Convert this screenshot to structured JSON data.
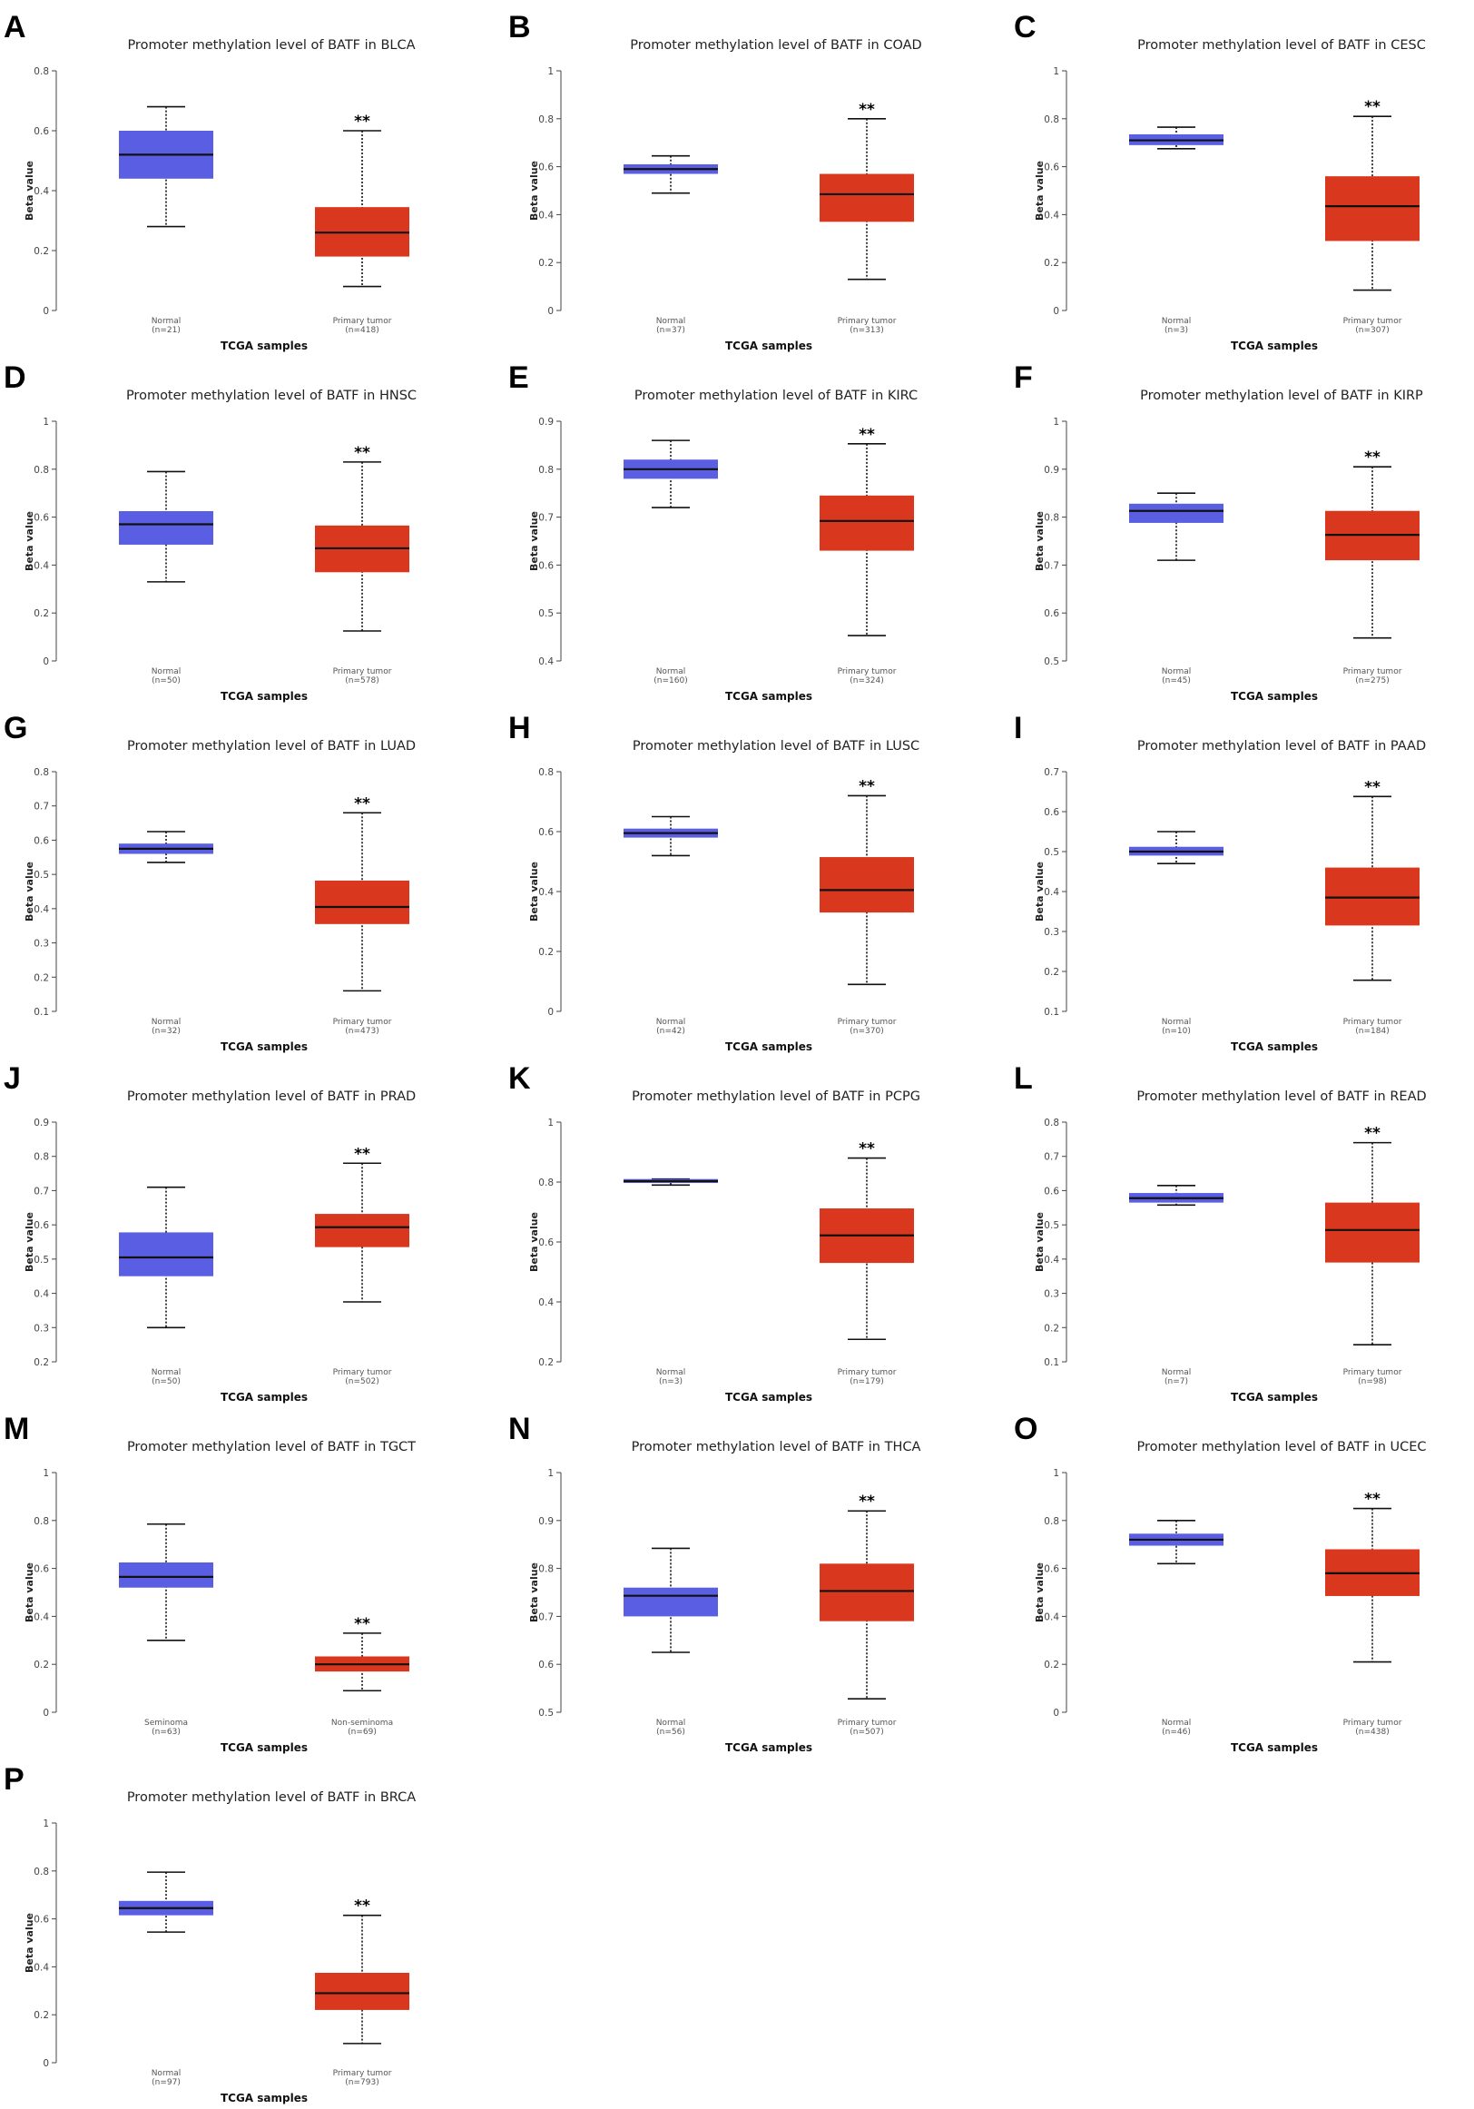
{
  "figure": {
    "x_axis_label": "TCGA samples",
    "y_axis_label": "Beta value",
    "colors": {
      "normal": "#5A5EE3",
      "tumor": "#D9381E",
      "median": "#111111",
      "whisker": "#111111"
    }
  },
  "chart_data": [
    {
      "letter": "A",
      "type": "boxplot",
      "title": "Promoter methylation level of BATF in BLCA",
      "xlabel": "TCGA samples",
      "ylabel": "Beta value",
      "ylim": [
        0,
        0.8
      ],
      "yticks": [
        0,
        0.2,
        0.4,
        0.6,
        0.8
      ],
      "groups": [
        {
          "name": "Normal",
          "n": "(n=21)",
          "min": 0.28,
          "q1": 0.44,
          "median": 0.52,
          "q3": 0.6,
          "max": 0.68,
          "color": "#5A5EE3"
        },
        {
          "name": "Primary tumor",
          "n": "(n=418)",
          "min": 0.08,
          "q1": 0.18,
          "median": 0.26,
          "q3": 0.345,
          "max": 0.6,
          "color": "#D9381E",
          "significance": "**"
        }
      ]
    },
    {
      "letter": "B",
      "type": "boxplot",
      "title": "Promoter methylation level of BATF in COAD",
      "xlabel": "TCGA samples",
      "ylabel": "Beta value",
      "ylim": [
        0,
        1
      ],
      "yticks": [
        0,
        0.2,
        0.4,
        0.6,
        0.8,
        1
      ],
      "groups": [
        {
          "name": "Normal",
          "n": "(n=37)",
          "min": 0.49,
          "q1": 0.57,
          "median": 0.59,
          "q3": 0.61,
          "max": 0.645,
          "color": "#5A5EE3"
        },
        {
          "name": "Primary tumor",
          "n": "(n=313)",
          "min": 0.13,
          "q1": 0.37,
          "median": 0.485,
          "q3": 0.57,
          "max": 0.8,
          "color": "#D9381E",
          "significance": "**"
        }
      ]
    },
    {
      "letter": "C",
      "type": "boxplot",
      "title": "Promoter methylation level of BATF in CESC",
      "xlabel": "TCGA samples",
      "ylabel": "Beta value",
      "ylim": [
        0,
        1
      ],
      "yticks": [
        0,
        0.2,
        0.4,
        0.6,
        0.8,
        1
      ],
      "groups": [
        {
          "name": "Normal",
          "n": "(n=3)",
          "min": 0.675,
          "q1": 0.69,
          "median": 0.71,
          "q3": 0.735,
          "max": 0.765,
          "color": "#5A5EE3"
        },
        {
          "name": "Primary tumor",
          "n": "(n=307)",
          "min": 0.085,
          "q1": 0.29,
          "median": 0.435,
          "q3": 0.56,
          "max": 0.81,
          "color": "#D9381E",
          "significance": "**"
        }
      ]
    },
    {
      "letter": "D",
      "type": "boxplot",
      "title": "Promoter methylation level of BATF in HNSC",
      "xlabel": "TCGA samples",
      "ylabel": "Beta value",
      "ylim": [
        0,
        1
      ],
      "yticks": [
        0,
        0.2,
        0.4,
        0.6,
        0.8,
        1
      ],
      "groups": [
        {
          "name": "Normal",
          "n": "(n=50)",
          "min": 0.33,
          "q1": 0.485,
          "median": 0.57,
          "q3": 0.625,
          "max": 0.79,
          "color": "#5A5EE3"
        },
        {
          "name": "Primary tumor",
          "n": "(n=578)",
          "min": 0.125,
          "q1": 0.37,
          "median": 0.47,
          "q3": 0.565,
          "max": 0.83,
          "color": "#D9381E",
          "significance": "**"
        }
      ]
    },
    {
      "letter": "E",
      "type": "boxplot",
      "title": "Promoter methylation level of BATF in KIRC",
      "xlabel": "TCGA samples",
      "ylabel": "Beta value",
      "ylim": [
        0.4,
        0.9
      ],
      "yticks": [
        0.4,
        0.5,
        0.6,
        0.7,
        0.8,
        0.9
      ],
      "groups": [
        {
          "name": "Normal",
          "n": "(n=160)",
          "min": 0.72,
          "q1": 0.78,
          "median": 0.8,
          "q3": 0.82,
          "max": 0.86,
          "color": "#5A5EE3"
        },
        {
          "name": "Primary tumor",
          "n": "(n=324)",
          "min": 0.453,
          "q1": 0.63,
          "median": 0.692,
          "q3": 0.745,
          "max": 0.853,
          "color": "#D9381E",
          "significance": "**"
        }
      ]
    },
    {
      "letter": "F",
      "type": "boxplot",
      "title": "Promoter methylation level of BATF in KIRP",
      "xlabel": "TCGA samples",
      "ylabel": "Beta value",
      "ylim": [
        0.5,
        1
      ],
      "yticks": [
        0.5,
        0.6,
        0.7,
        0.8,
        0.9,
        1
      ],
      "groups": [
        {
          "name": "Normal",
          "n": "(n=45)",
          "min": 0.71,
          "q1": 0.788,
          "median": 0.813,
          "q3": 0.828,
          "max": 0.85,
          "color": "#5A5EE3"
        },
        {
          "name": "Primary tumor",
          "n": "(n=275)",
          "min": 0.548,
          "q1": 0.71,
          "median": 0.763,
          "q3": 0.813,
          "max": 0.905,
          "color": "#D9381E",
          "significance": "**"
        }
      ]
    },
    {
      "letter": "G",
      "type": "boxplot",
      "title": "Promoter methylation level of BATF in LUAD",
      "xlabel": "TCGA samples",
      "ylabel": "Beta value",
      "ylim": [
        0.1,
        0.8
      ],
      "yticks": [
        0.1,
        0.2,
        0.3,
        0.4,
        0.5,
        0.6,
        0.7,
        0.8
      ],
      "groups": [
        {
          "name": "Normal",
          "n": "(n=32)",
          "min": 0.535,
          "q1": 0.56,
          "median": 0.575,
          "q3": 0.59,
          "max": 0.625,
          "color": "#5A5EE3"
        },
        {
          "name": "Primary tumor",
          "n": "(n=473)",
          "min": 0.16,
          "q1": 0.355,
          "median": 0.405,
          "q3": 0.482,
          "max": 0.68,
          "color": "#D9381E",
          "significance": "**"
        }
      ]
    },
    {
      "letter": "H",
      "type": "boxplot",
      "title": "Promoter methylation level of BATF in LUSC",
      "xlabel": "TCGA samples",
      "ylabel": "Beta value",
      "ylim": [
        0,
        0.8
      ],
      "yticks": [
        0,
        0.2,
        0.4,
        0.6,
        0.8
      ],
      "groups": [
        {
          "name": "Normal",
          "n": "(n=42)",
          "min": 0.52,
          "q1": 0.58,
          "median": 0.595,
          "q3": 0.61,
          "max": 0.65,
          "color": "#5A5EE3"
        },
        {
          "name": "Primary tumor",
          "n": "(n=370)",
          "min": 0.09,
          "q1": 0.33,
          "median": 0.405,
          "q3": 0.515,
          "max": 0.72,
          "color": "#D9381E",
          "significance": "**"
        }
      ]
    },
    {
      "letter": "I",
      "type": "boxplot",
      "title": "Promoter methylation level of BATF in PAAD",
      "xlabel": "TCGA samples",
      "ylabel": "Beta value",
      "ylim": [
        0.1,
        0.7
      ],
      "yticks": [
        0.1,
        0.2,
        0.3,
        0.4,
        0.5,
        0.6,
        0.7
      ],
      "groups": [
        {
          "name": "Normal",
          "n": "(n=10)",
          "min": 0.47,
          "q1": 0.49,
          "median": 0.5,
          "q3": 0.512,
          "max": 0.55,
          "color": "#5A5EE3"
        },
        {
          "name": "Primary tumor",
          "n": "(n=184)",
          "min": 0.178,
          "q1": 0.315,
          "median": 0.385,
          "q3": 0.46,
          "max": 0.638,
          "color": "#D9381E",
          "significance": "**"
        }
      ]
    },
    {
      "letter": "J",
      "type": "boxplot",
      "title": "Promoter methylation level of BATF in PRAD",
      "xlabel": "TCGA samples",
      "ylabel": "Beta value",
      "ylim": [
        0.2,
        0.9
      ],
      "yticks": [
        0.2,
        0.3,
        0.4,
        0.5,
        0.6,
        0.7,
        0.8,
        0.9
      ],
      "groups": [
        {
          "name": "Normal",
          "n": "(n=50)",
          "min": 0.3,
          "q1": 0.45,
          "median": 0.505,
          "q3": 0.578,
          "max": 0.71,
          "color": "#5A5EE3"
        },
        {
          "name": "Primary tumor",
          "n": "(n=502)",
          "min": 0.375,
          "q1": 0.535,
          "median": 0.593,
          "q3": 0.632,
          "max": 0.78,
          "color": "#D9381E",
          "significance": "**"
        }
      ]
    },
    {
      "letter": "K",
      "type": "boxplot",
      "title": "Promoter methylation level of BATF in PCPG",
      "xlabel": "TCGA samples",
      "ylabel": "Beta value",
      "ylim": [
        0.2,
        1
      ],
      "yticks": [
        0.2,
        0.4,
        0.6,
        0.8,
        1
      ],
      "groups": [
        {
          "name": "Normal",
          "n": "(n=3)",
          "min": 0.79,
          "q1": 0.797,
          "median": 0.803,
          "q3": 0.81,
          "max": 0.81,
          "color": "#5A5EE3"
        },
        {
          "name": "Primary tumor",
          "n": "(n=179)",
          "min": 0.275,
          "q1": 0.53,
          "median": 0.622,
          "q3": 0.712,
          "max": 0.88,
          "color": "#D9381E",
          "significance": "**"
        }
      ]
    },
    {
      "letter": "L",
      "type": "boxplot",
      "title": "Promoter methylation level of BATF in READ",
      "xlabel": "TCGA samples",
      "ylabel": "Beta value",
      "ylim": [
        0.1,
        0.8
      ],
      "yticks": [
        0.1,
        0.2,
        0.3,
        0.4,
        0.5,
        0.6,
        0.7,
        0.8
      ],
      "groups": [
        {
          "name": "Normal",
          "n": "(n=7)",
          "min": 0.558,
          "q1": 0.565,
          "median": 0.578,
          "q3": 0.593,
          "max": 0.615,
          "color": "#5A5EE3"
        },
        {
          "name": "Primary tumor",
          "n": "(n=98)",
          "min": 0.15,
          "q1": 0.39,
          "median": 0.485,
          "q3": 0.565,
          "max": 0.74,
          "color": "#D9381E",
          "significance": "**"
        }
      ]
    },
    {
      "letter": "M",
      "type": "boxplot",
      "title": "Promoter methylation level of BATF in TGCT",
      "xlabel": "TCGA samples",
      "ylabel": "Beta value",
      "ylim": [
        0,
        1
      ],
      "yticks": [
        0,
        0.2,
        0.4,
        0.6,
        0.8,
        1
      ],
      "groups": [
        {
          "name": "Seminoma",
          "n": "(n=63)",
          "min": 0.3,
          "q1": 0.52,
          "median": 0.565,
          "q3": 0.625,
          "max": 0.785,
          "color": "#5A5EE3"
        },
        {
          "name": "Non-seminoma",
          "n": "(n=69)",
          "min": 0.09,
          "q1": 0.17,
          "median": 0.2,
          "q3": 0.233,
          "max": 0.33,
          "color": "#D9381E",
          "significance": "**"
        }
      ]
    },
    {
      "letter": "N",
      "type": "boxplot",
      "title": "Promoter methylation level of BATF in THCA",
      "xlabel": "TCGA samples",
      "ylabel": "Beta value",
      "ylim": [
        0.5,
        1
      ],
      "yticks": [
        0.5,
        0.6,
        0.7,
        0.8,
        0.9,
        1
      ],
      "groups": [
        {
          "name": "Normal",
          "n": "(n=56)",
          "min": 0.625,
          "q1": 0.7,
          "median": 0.743,
          "q3": 0.76,
          "max": 0.842,
          "color": "#5A5EE3"
        },
        {
          "name": "Primary tumor",
          "n": "(n=507)",
          "min": 0.528,
          "q1": 0.69,
          "median": 0.753,
          "q3": 0.81,
          "max": 0.92,
          "color": "#D9381E",
          "significance": "**"
        }
      ]
    },
    {
      "letter": "O",
      "type": "boxplot",
      "title": "Promoter methylation level of BATF in UCEC",
      "xlabel": "TCGA samples",
      "ylabel": "Beta value",
      "ylim": [
        0,
        1
      ],
      "yticks": [
        0,
        0.2,
        0.4,
        0.6,
        0.8,
        1
      ],
      "groups": [
        {
          "name": "Normal",
          "n": "(n=46)",
          "min": 0.62,
          "q1": 0.695,
          "median": 0.72,
          "q3": 0.745,
          "max": 0.8,
          "color": "#5A5EE3"
        },
        {
          "name": "Primary tumor",
          "n": "(n=438)",
          "min": 0.21,
          "q1": 0.485,
          "median": 0.58,
          "q3": 0.68,
          "max": 0.85,
          "color": "#D9381E",
          "significance": "**"
        }
      ]
    },
    {
      "letter": "P",
      "type": "boxplot",
      "title": "Promoter methylation level of BATF in BRCA",
      "xlabel": "TCGA samples",
      "ylabel": "Beta value",
      "ylim": [
        0,
        1
      ],
      "yticks": [
        0,
        0.2,
        0.4,
        0.6,
        0.8,
        1
      ],
      "groups": [
        {
          "name": "Normal",
          "n": "(n=97)",
          "min": 0.545,
          "q1": 0.615,
          "median": 0.645,
          "q3": 0.675,
          "max": 0.795,
          "color": "#5A5EE3"
        },
        {
          "name": "Primary tumor",
          "n": "(n=793)",
          "min": 0.08,
          "q1": 0.22,
          "median": 0.29,
          "q3": 0.375,
          "max": 0.615,
          "color": "#D9381E",
          "significance": "**"
        }
      ]
    }
  ]
}
